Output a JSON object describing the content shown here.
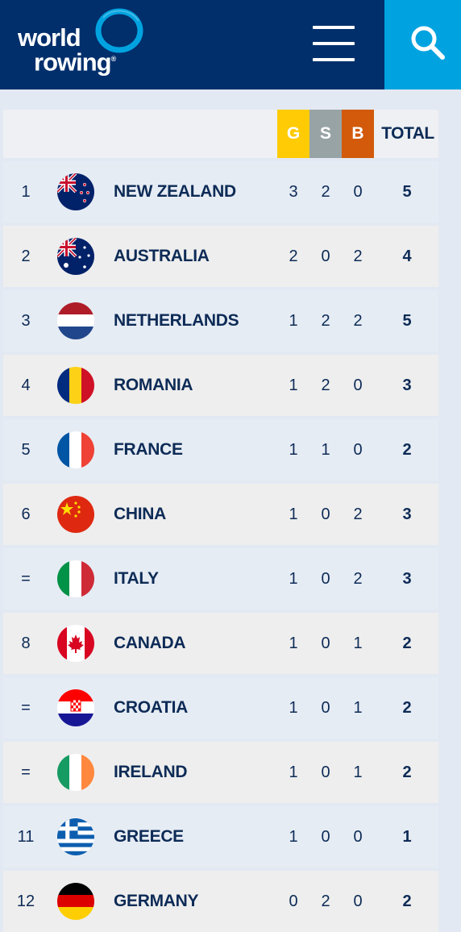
{
  "header": {
    "logo_line1": "world",
    "logo_line2": "rowing",
    "logo_mark": "®",
    "menu_icon": "hamburger-menu-icon",
    "search_icon": "search-icon"
  },
  "table": {
    "headers": {
      "gold": "G",
      "silver": "S",
      "bronze": "B",
      "total": "TOTAL"
    },
    "colors": {
      "gold": "#ffcb05",
      "silver": "#98a3a6",
      "bronze": "#d25a0a",
      "header_bg": "#002f6c",
      "search_bg": "#00a3e0"
    },
    "rows": [
      {
        "rank": "1",
        "country": "NEW ZEALAND",
        "flag": "new-zealand-flag-icon",
        "g": "3",
        "s": "2",
        "b": "0",
        "total": "5"
      },
      {
        "rank": "2",
        "country": "AUSTRALIA",
        "flag": "australia-flag-icon",
        "g": "2",
        "s": "0",
        "b": "2",
        "total": "4"
      },
      {
        "rank": "3",
        "country": "NETHERLANDS",
        "flag": "netherlands-flag-icon",
        "g": "1",
        "s": "2",
        "b": "2",
        "total": "5"
      },
      {
        "rank": "4",
        "country": "ROMANIA",
        "flag": "romania-flag-icon",
        "g": "1",
        "s": "2",
        "b": "0",
        "total": "3"
      },
      {
        "rank": "5",
        "country": "FRANCE",
        "flag": "france-flag-icon",
        "g": "1",
        "s": "1",
        "b": "0",
        "total": "2"
      },
      {
        "rank": "6",
        "country": "CHINA",
        "flag": "china-flag-icon",
        "g": "1",
        "s": "0",
        "b": "2",
        "total": "3"
      },
      {
        "rank": "=",
        "country": "ITALY",
        "flag": "italy-flag-icon",
        "g": "1",
        "s": "0",
        "b": "2",
        "total": "3"
      },
      {
        "rank": "8",
        "country": "CANADA",
        "flag": "canada-flag-icon",
        "g": "1",
        "s": "0",
        "b": "1",
        "total": "2"
      },
      {
        "rank": "=",
        "country": "CROATIA",
        "flag": "croatia-flag-icon",
        "g": "1",
        "s": "0",
        "b": "1",
        "total": "2"
      },
      {
        "rank": "=",
        "country": "IRELAND",
        "flag": "ireland-flag-icon",
        "g": "1",
        "s": "0",
        "b": "1",
        "total": "2"
      },
      {
        "rank": "11",
        "country": "GREECE",
        "flag": "greece-flag-icon",
        "g": "1",
        "s": "0",
        "b": "0",
        "total": "1"
      },
      {
        "rank": "12",
        "country": "GERMANY",
        "flag": "germany-flag-icon",
        "g": "0",
        "s": "2",
        "b": "0",
        "total": "2"
      }
    ]
  }
}
